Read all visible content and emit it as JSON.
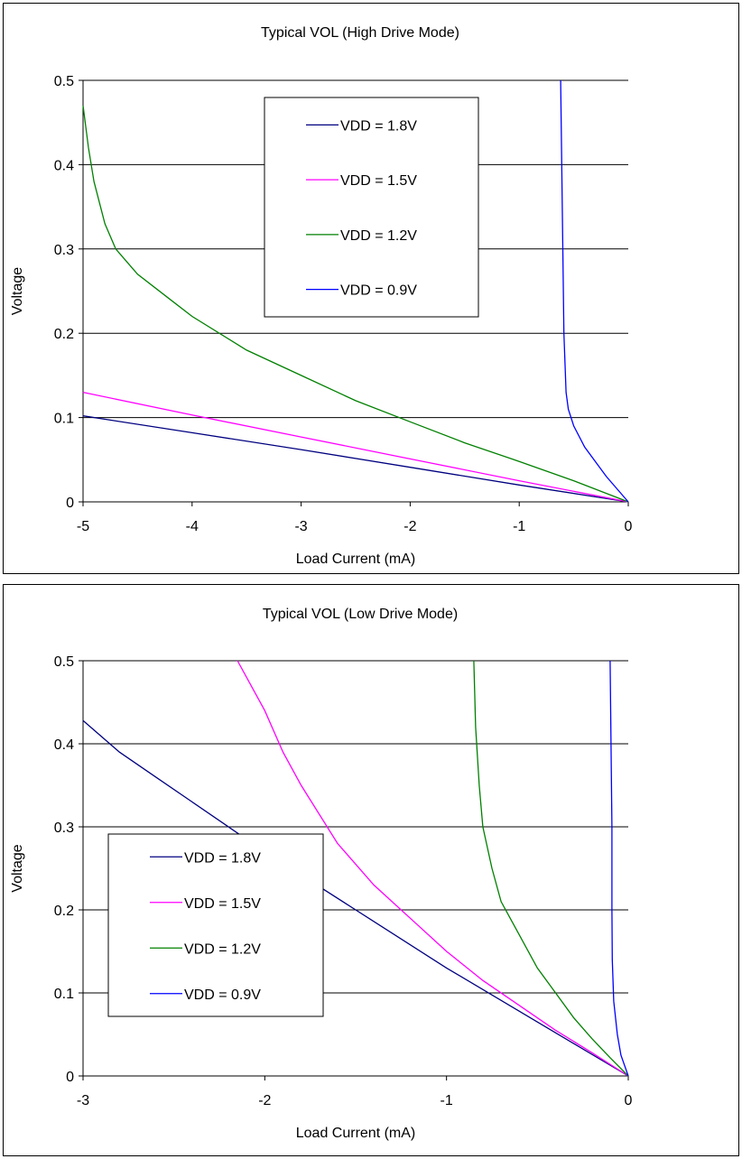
{
  "chart_data": [
    {
      "type": "line",
      "title": "Typical VOL (High Drive Mode)",
      "xlabel": "Load Current (mA)",
      "ylabel": "Voltage",
      "xlim": [
        -5,
        0
      ],
      "ylim": [
        0,
        0.5
      ],
      "x_ticks": [
        "-5",
        "-4",
        "-3",
        "-2",
        "-1",
        "0"
      ],
      "y_ticks": [
        "0",
        "0.1",
        "0.2",
        "0.3",
        "0.4",
        "0.5"
      ],
      "grid": "horizontal",
      "legend_position": "top-center",
      "series": [
        {
          "name": "VDD = 1.8V",
          "color": "#000080",
          "points": [
            [
              -5,
              0.102
            ],
            [
              -4,
              0.082
            ],
            [
              -3,
              0.062
            ],
            [
              -2,
              0.041
            ],
            [
              -1,
              0.02
            ],
            [
              0,
              0
            ]
          ]
        },
        {
          "name": "VDD = 1.5V",
          "color": "#ff00ff",
          "points": [
            [
              -5,
              0.13
            ],
            [
              -4,
              0.103
            ],
            [
              -3,
              0.077
            ],
            [
              -2,
              0.051
            ],
            [
              -1,
              0.025
            ],
            [
              0,
              0
            ]
          ]
        },
        {
          "name": "VDD = 1.2V",
          "color": "#008000",
          "points": [
            [
              -5,
              0.47
            ],
            [
              -4.95,
              0.42
            ],
            [
              -4.9,
              0.38
            ],
            [
              -4.8,
              0.33
            ],
            [
              -4.7,
              0.3
            ],
            [
              -4.6,
              0.285
            ],
            [
              -4.5,
              0.27
            ],
            [
              -4.2,
              0.24
            ],
            [
              -4.0,
              0.22
            ],
            [
              -3.5,
              0.18
            ],
            [
              -3.0,
              0.15
            ],
            [
              -2.5,
              0.12
            ],
            [
              -2.0,
              0.095
            ],
            [
              -1.5,
              0.07
            ],
            [
              -1.0,
              0.048
            ],
            [
              -0.5,
              0.025
            ],
            [
              0,
              0
            ]
          ]
        },
        {
          "name": "VDD = 0.9V",
          "color": "#0000ff",
          "points": [
            [
              -0.62,
              0.5
            ],
            [
              -0.61,
              0.4
            ],
            [
              -0.6,
              0.3
            ],
            [
              -0.59,
              0.2
            ],
            [
              -0.57,
              0.13
            ],
            [
              -0.55,
              0.11
            ],
            [
              -0.5,
              0.09
            ],
            [
              -0.4,
              0.065
            ],
            [
              -0.2,
              0.03
            ],
            [
              0,
              0
            ]
          ]
        }
      ]
    },
    {
      "type": "line",
      "title": "Typical VOL (Low Drive Mode)",
      "xlabel": "Load Current (mA)",
      "ylabel": "Voltage",
      "xlim": [
        -3,
        0
      ],
      "ylim": [
        0,
        0.5
      ],
      "x_ticks": [
        "-3",
        "-2",
        "-1",
        "0"
      ],
      "y_ticks": [
        "0",
        "0.1",
        "0.2",
        "0.3",
        "0.4",
        "0.5"
      ],
      "grid": "horizontal",
      "legend_position": "bottom-left",
      "series": [
        {
          "name": "VDD = 1.8V",
          "color": "#000080",
          "points": [
            [
              -3,
              0.428
            ],
            [
              -2.8,
              0.39
            ],
            [
              -2.6,
              0.36
            ],
            [
              -2.4,
              0.33
            ],
            [
              -2.0,
              0.27
            ],
            [
              -1.5,
              0.2
            ],
            [
              -1.0,
              0.13
            ],
            [
              -0.5,
              0.065
            ],
            [
              0,
              0
            ]
          ]
        },
        {
          "name": "VDD = 1.5V",
          "color": "#ff00ff",
          "points": [
            [
              -2.15,
              0.5
            ],
            [
              -2.0,
              0.44
            ],
            [
              -1.9,
              0.39
            ],
            [
              -1.8,
              0.35
            ],
            [
              -1.6,
              0.28
            ],
            [
              -1.4,
              0.23
            ],
            [
              -1.2,
              0.19
            ],
            [
              -1.0,
              0.15
            ],
            [
              -0.8,
              0.115
            ],
            [
              -0.6,
              0.085
            ],
            [
              -0.4,
              0.055
            ],
            [
              -0.2,
              0.028
            ],
            [
              0,
              0
            ]
          ]
        },
        {
          "name": "VDD = 1.2V",
          "color": "#008000",
          "points": [
            [
              -0.85,
              0.5
            ],
            [
              -0.84,
              0.42
            ],
            [
              -0.82,
              0.35
            ],
            [
              -0.8,
              0.3
            ],
            [
              -0.75,
              0.25
            ],
            [
              -0.7,
              0.21
            ],
            [
              -0.6,
              0.17
            ],
            [
              -0.5,
              0.13
            ],
            [
              -0.4,
              0.1
            ],
            [
              -0.3,
              0.07
            ],
            [
              -0.2,
              0.045
            ],
            [
              -0.1,
              0.022
            ],
            [
              0,
              0
            ]
          ]
        },
        {
          "name": "VDD = 0.9V",
          "color": "#0000ff",
          "points": [
            [
              -0.1,
              0.5
            ],
            [
              -0.095,
              0.4
            ],
            [
              -0.09,
              0.3
            ],
            [
              -0.09,
              0.2
            ],
            [
              -0.088,
              0.14
            ],
            [
              -0.08,
              0.09
            ],
            [
              -0.06,
              0.05
            ],
            [
              -0.04,
              0.025
            ],
            [
              0,
              0
            ]
          ]
        }
      ]
    }
  ]
}
